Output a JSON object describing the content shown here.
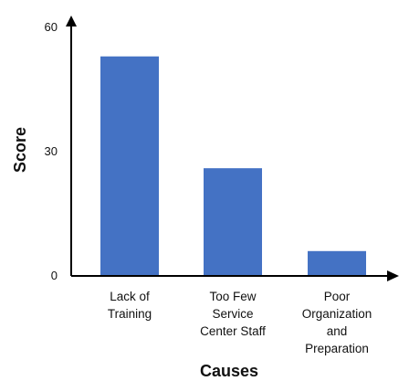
{
  "chart_data": {
    "type": "bar",
    "categories": [
      "Lack of Training",
      "Too Few Service Center Staff",
      "Poor Organization and Preparation"
    ],
    "category_label_lines": [
      [
        "Lack of",
        "Training"
      ],
      [
        "Too Few",
        "Service",
        "Center Staff"
      ],
      [
        "Poor",
        "Organization",
        "and",
        "Preparation"
      ]
    ],
    "values": [
      53,
      26,
      6
    ],
    "ylim": [
      0,
      60
    ],
    "yticks": [
      0,
      30,
      60
    ],
    "xlabel": "Causes",
    "ylabel": "Score",
    "grid": false,
    "bar_color": "#4472C4",
    "axis_color": "#000000"
  }
}
